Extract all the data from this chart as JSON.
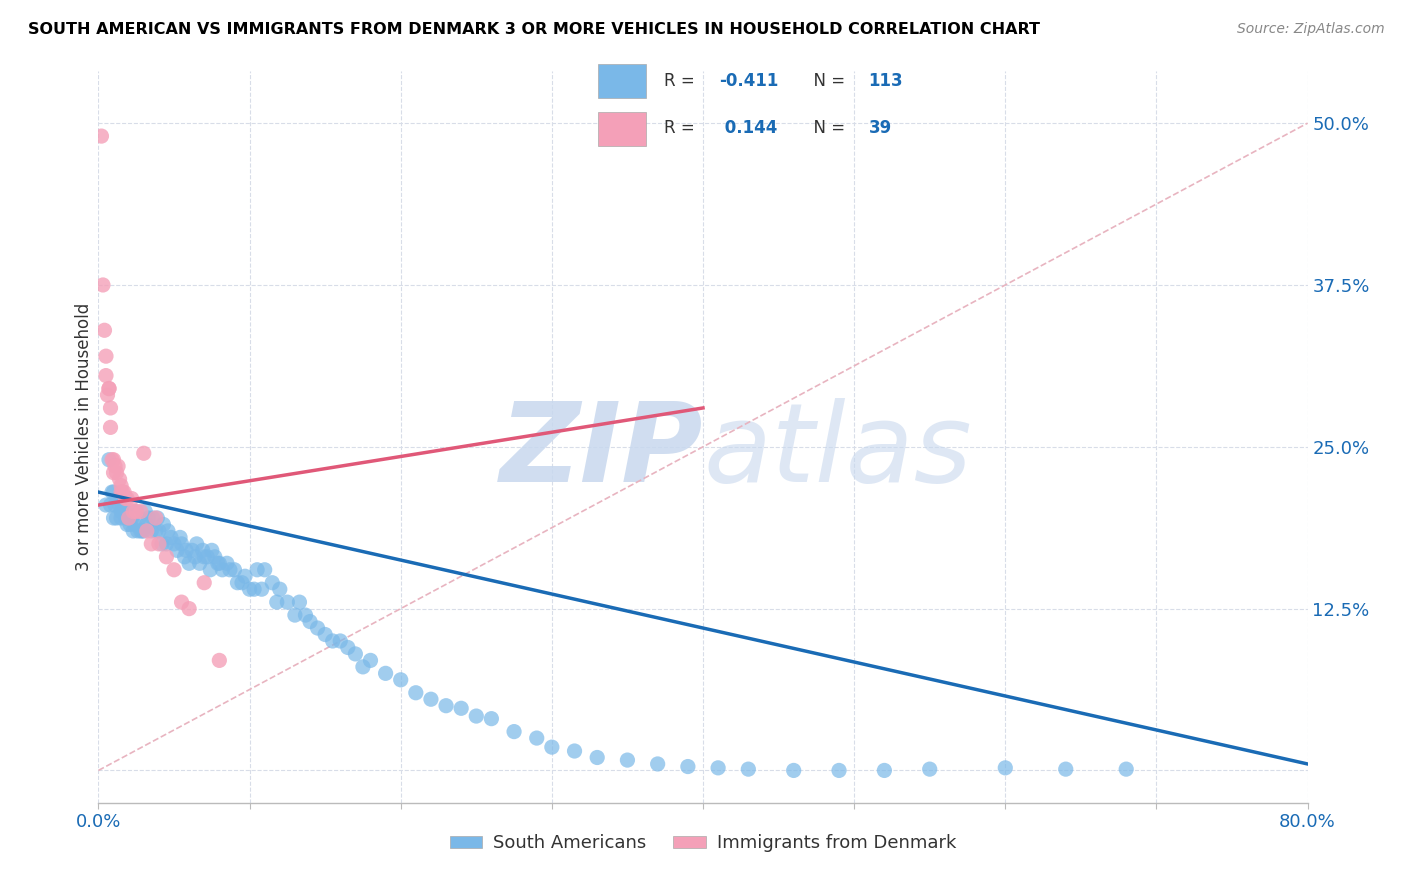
{
  "title": "SOUTH AMERICAN VS IMMIGRANTS FROM DENMARK 3 OR MORE VEHICLES IN HOUSEHOLD CORRELATION CHART",
  "source": "Source: ZipAtlas.com",
  "ylabel": "3 or more Vehicles in Household",
  "ytick_labels": [
    "",
    "12.5%",
    "25.0%",
    "37.5%",
    "50.0%"
  ],
  "ytick_values": [
    0.0,
    0.125,
    0.25,
    0.375,
    0.5
  ],
  "xlim": [
    0.0,
    0.8
  ],
  "ylim": [
    -0.025,
    0.54
  ],
  "color_blue": "#7ab8e8",
  "color_pink": "#f4a0b8",
  "trendline_blue_color": "#1a6bb5",
  "trendline_pink_color": "#e05878",
  "trendline_dashed_color": "#e8b4c0",
  "watermark_color": "#d6e4f5",
  "background_color": "#ffffff",
  "grid_color": "#d8dde8",
  "blue_scatter_x": [
    0.005,
    0.007,
    0.008,
    0.009,
    0.01,
    0.01,
    0.011,
    0.012,
    0.013,
    0.014,
    0.015,
    0.015,
    0.016,
    0.017,
    0.018,
    0.018,
    0.019,
    0.02,
    0.021,
    0.022,
    0.023,
    0.024,
    0.025,
    0.026,
    0.027,
    0.028,
    0.029,
    0.03,
    0.031,
    0.032,
    0.033,
    0.035,
    0.036,
    0.038,
    0.039,
    0.04,
    0.042,
    0.043,
    0.045,
    0.046,
    0.048,
    0.05,
    0.052,
    0.054,
    0.055,
    0.057,
    0.058,
    0.06,
    0.062,
    0.064,
    0.065,
    0.067,
    0.069,
    0.07,
    0.072,
    0.074,
    0.075,
    0.077,
    0.079,
    0.08,
    0.082,
    0.085,
    0.087,
    0.09,
    0.092,
    0.095,
    0.097,
    0.1,
    0.103,
    0.105,
    0.108,
    0.11,
    0.115,
    0.118,
    0.12,
    0.125,
    0.13,
    0.133,
    0.137,
    0.14,
    0.145,
    0.15,
    0.155,
    0.16,
    0.165,
    0.17,
    0.175,
    0.18,
    0.19,
    0.2,
    0.21,
    0.22,
    0.23,
    0.24,
    0.25,
    0.26,
    0.275,
    0.29,
    0.3,
    0.315,
    0.33,
    0.35,
    0.37,
    0.39,
    0.41,
    0.43,
    0.46,
    0.49,
    0.52,
    0.55,
    0.6,
    0.64,
    0.68
  ],
  "blue_scatter_y": [
    0.205,
    0.24,
    0.205,
    0.215,
    0.195,
    0.215,
    0.205,
    0.195,
    0.21,
    0.205,
    0.2,
    0.195,
    0.205,
    0.2,
    0.195,
    0.2,
    0.19,
    0.195,
    0.19,
    0.195,
    0.185,
    0.19,
    0.2,
    0.185,
    0.195,
    0.185,
    0.185,
    0.185,
    0.2,
    0.19,
    0.195,
    0.185,
    0.195,
    0.185,
    0.195,
    0.185,
    0.175,
    0.19,
    0.175,
    0.185,
    0.18,
    0.175,
    0.17,
    0.18,
    0.175,
    0.165,
    0.17,
    0.16,
    0.17,
    0.165,
    0.175,
    0.16,
    0.17,
    0.165,
    0.165,
    0.155,
    0.17,
    0.165,
    0.16,
    0.16,
    0.155,
    0.16,
    0.155,
    0.155,
    0.145,
    0.145,
    0.15,
    0.14,
    0.14,
    0.155,
    0.14,
    0.155,
    0.145,
    0.13,
    0.14,
    0.13,
    0.12,
    0.13,
    0.12,
    0.115,
    0.11,
    0.105,
    0.1,
    0.1,
    0.095,
    0.09,
    0.08,
    0.085,
    0.075,
    0.07,
    0.06,
    0.055,
    0.05,
    0.048,
    0.042,
    0.04,
    0.03,
    0.025,
    0.018,
    0.015,
    0.01,
    0.008,
    0.005,
    0.003,
    0.002,
    0.001,
    0.0,
    0.0,
    0.0,
    0.001,
    0.002,
    0.001,
    0.001
  ],
  "pink_scatter_x": [
    0.002,
    0.003,
    0.004,
    0.005,
    0.005,
    0.006,
    0.007,
    0.007,
    0.008,
    0.008,
    0.009,
    0.01,
    0.01,
    0.011,
    0.012,
    0.013,
    0.014,
    0.015,
    0.015,
    0.016,
    0.017,
    0.018,
    0.019,
    0.02,
    0.022,
    0.023,
    0.025,
    0.028,
    0.03,
    0.032,
    0.035,
    0.038,
    0.04,
    0.045,
    0.05,
    0.055,
    0.06,
    0.07,
    0.08
  ],
  "pink_scatter_y": [
    0.49,
    0.375,
    0.34,
    0.32,
    0.305,
    0.29,
    0.295,
    0.295,
    0.28,
    0.265,
    0.24,
    0.24,
    0.23,
    0.235,
    0.23,
    0.235,
    0.225,
    0.215,
    0.22,
    0.215,
    0.215,
    0.21,
    0.21,
    0.195,
    0.21,
    0.2,
    0.2,
    0.2,
    0.245,
    0.185,
    0.175,
    0.195,
    0.175,
    0.165,
    0.155,
    0.13,
    0.125,
    0.145,
    0.085
  ],
  "blue_trend_x": [
    0.0,
    0.8
  ],
  "blue_trend_y": [
    0.215,
    0.005
  ],
  "pink_trend_x": [
    0.0,
    0.4
  ],
  "pink_trend_y": [
    0.205,
    0.28
  ],
  "dashed_trend_x": [
    0.0,
    0.8
  ],
  "dashed_trend_y": [
    0.0,
    0.5
  ],
  "legend_items": [
    {
      "label_r": "R = -0.411",
      "label_n": "N = 113",
      "color": "#7ab8e8"
    },
    {
      "label_r": "R =  0.144",
      "label_n": "N =  39",
      "color": "#f4a0b8"
    }
  ],
  "bottom_legend": [
    {
      "label": "South Americans",
      "color": "#7ab8e8"
    },
    {
      "label": "Immigrants from Denmark",
      "color": "#f4a0b8"
    }
  ]
}
